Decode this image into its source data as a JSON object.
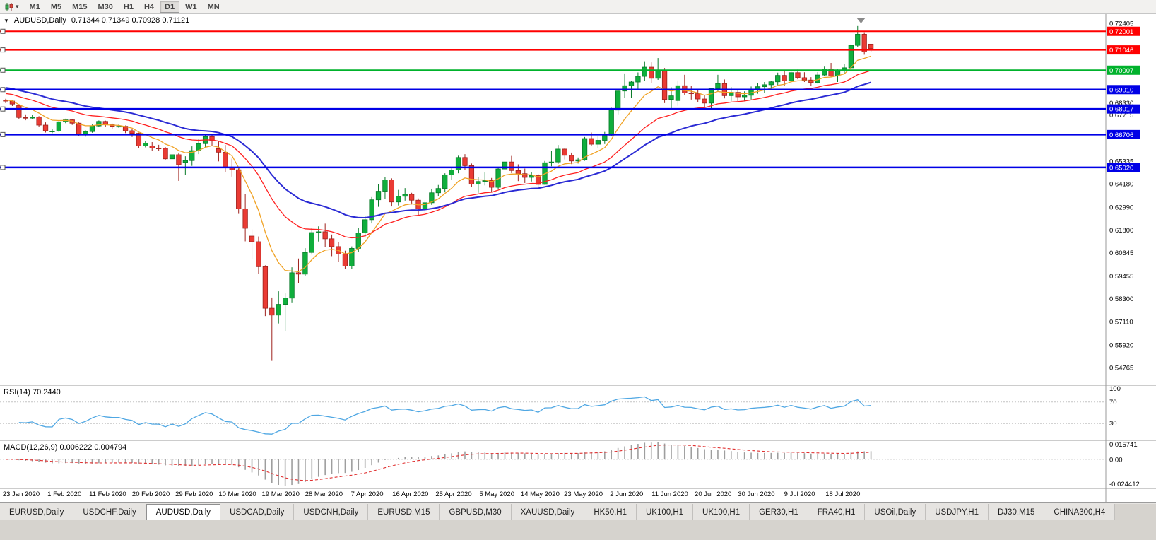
{
  "toolbar": {
    "caret_glyph": "▾",
    "timeframes": [
      {
        "label": "M1"
      },
      {
        "label": "M5"
      },
      {
        "label": "M15"
      },
      {
        "label": "M30"
      },
      {
        "label": "H1"
      },
      {
        "label": "H4"
      },
      {
        "label": "D1",
        "active": true
      },
      {
        "label": "W1"
      },
      {
        "label": "MN"
      }
    ]
  },
  "chart": {
    "title": "AUDUSD,Daily",
    "ohlc": "0.71344 0.71349 0.70928 0.71121",
    "collapse_glyph": "▼"
  },
  "indicators": {
    "rsi": {
      "label": "RSI(14) 70.2440",
      "period": 14,
      "levels": [
        70,
        30
      ],
      "axis_labels": [
        "100",
        "70",
        "30"
      ],
      "range": [
        0,
        100
      ],
      "line_color": "#4FA7E3"
    },
    "macd": {
      "label": "MACD(12,26,9) 0.006222 0.004794",
      "fast": 12,
      "slow": 26,
      "signal": 9,
      "axis_labels": [
        "0.015741",
        "0.00",
        "-0.024412"
      ],
      "range": [
        -0.024412,
        0.015741
      ],
      "bar_color": "#9E9E9E",
      "signal_color": "#E03030"
    }
  },
  "chart_data": {
    "type": "candlestick",
    "symbol": "AUDUSD",
    "period": "Daily",
    "ylim": [
      0.5389,
      0.7288
    ],
    "price_ticks": [
      "0.72405",
      "0.68330",
      "0.67715",
      "0.65335",
      "0.64180",
      "0.62990",
      "0.61800",
      "0.60645",
      "0.59455",
      "0.58300",
      "0.57110",
      "0.55920",
      "0.54765"
    ],
    "hlines": [
      {
        "price": 0.72001,
        "label": "0.72001",
        "color": "#FF0000",
        "width": 2
      },
      {
        "price": 0.71046,
        "label": "0.71046",
        "color": "#FF0000",
        "width": 2
      },
      {
        "price": 0.70007,
        "label": "0.70007",
        "color": "#00B22C",
        "width": 2
      },
      {
        "price": 0.6901,
        "label": "0.69010",
        "color": "#0000E6",
        "width": 2.5
      },
      {
        "price": 0.68017,
        "label": "0.68017",
        "color": "#0000E6",
        "width": 2.5
      },
      {
        "price": 0.66706,
        "label": "0.66706",
        "color": "#0000E6",
        "width": 2.5
      },
      {
        "price": 0.6502,
        "label": "0.65020",
        "color": "#0000E6",
        "width": 2.5
      }
    ],
    "date_labels": [
      "23 Jan 2020",
      "1 Feb 2020",
      "11 Feb 2020",
      "20 Feb 2020",
      "29 Feb 2020",
      "10 Mar 2020",
      "19 Mar 2020",
      "28 Mar 2020",
      "7 Apr 2020",
      "16 Apr 2020",
      "25 Apr 2020",
      "5 May 2020",
      "14 May 2020",
      "23 May 2020",
      "2 Jun 2020",
      "11 Jun 2020",
      "20 Jun 2020",
      "30 Jun 2020",
      "9 Jul 2020",
      "18 Jul 2020"
    ],
    "moving_averages": [
      {
        "name": "fast-ma",
        "color": "#F0A224",
        "period": 8,
        "seed": 0.685,
        "width": 1.3
      },
      {
        "name": "mid-ma",
        "color": "#FF2020",
        "period": 21,
        "seed": 0.6885,
        "width": 1.3
      },
      {
        "name": "slow-ma",
        "color": "#2A2AD4",
        "period": 34,
        "seed": 0.6915,
        "width": 2
      }
    ],
    "candles": [
      [
        0.6848,
        0.6854,
        0.6832,
        0.6842
      ],
      [
        0.6842,
        0.6849,
        0.6817,
        0.6827
      ],
      [
        0.682,
        0.6824,
        0.6748,
        0.6758
      ],
      [
        0.6758,
        0.6774,
        0.6744,
        0.6755
      ],
      [
        0.6755,
        0.6772,
        0.6749,
        0.676
      ],
      [
        0.676,
        0.6765,
        0.671,
        0.6719
      ],
      [
        0.6719,
        0.6733,
        0.6681,
        0.669
      ],
      [
        0.6686,
        0.67,
        0.6678,
        0.6688
      ],
      [
        0.6688,
        0.674,
        0.6683,
        0.6736
      ],
      [
        0.6736,
        0.6752,
        0.6729,
        0.6746
      ],
      [
        0.6746,
        0.675,
        0.672,
        0.6729
      ],
      [
        0.6729,
        0.6733,
        0.6662,
        0.667
      ],
      [
        0.6672,
        0.6692,
        0.666,
        0.6686
      ],
      [
        0.6686,
        0.6722,
        0.668,
        0.6715
      ],
      [
        0.6715,
        0.6743,
        0.6709,
        0.6738
      ],
      [
        0.6738,
        0.6742,
        0.6712,
        0.6721
      ],
      [
        0.6721,
        0.6727,
        0.67,
        0.6713
      ],
      [
        0.6713,
        0.6722,
        0.6705,
        0.6713
      ],
      [
        0.6713,
        0.6717,
        0.6678,
        0.669
      ],
      [
        0.669,
        0.67,
        0.6658,
        0.6677
      ],
      [
        0.6677,
        0.668,
        0.6601,
        0.6612
      ],
      [
        0.6612,
        0.6637,
        0.6605,
        0.6627
      ],
      [
        0.6612,
        0.6632,
        0.6585,
        0.6601
      ],
      [
        0.6601,
        0.6618,
        0.6586,
        0.66
      ],
      [
        0.66,
        0.6606,
        0.6542,
        0.6546
      ],
      [
        0.6546,
        0.6574,
        0.6521,
        0.6567
      ],
      [
        0.6567,
        0.6578,
        0.6433,
        0.6516
      ],
      [
        0.6528,
        0.6559,
        0.6462,
        0.6537
      ],
      [
        0.6537,
        0.661,
        0.651,
        0.6588
      ],
      [
        0.6588,
        0.6646,
        0.657,
        0.6624
      ],
      [
        0.6624,
        0.667,
        0.66,
        0.666
      ],
      [
        0.666,
        0.6672,
        0.6613,
        0.6641
      ],
      [
        0.6598,
        0.6635,
        0.6533,
        0.658
      ],
      [
        0.658,
        0.6617,
        0.6477,
        0.6502
      ],
      [
        0.6502,
        0.6547,
        0.6455,
        0.649
      ],
      [
        0.649,
        0.6499,
        0.6264,
        0.629
      ],
      [
        0.629,
        0.6365,
        0.6123,
        0.619
      ],
      [
        0.615,
        0.6185,
        0.603,
        0.6121
      ],
      [
        0.6121,
        0.6148,
        0.5958,
        0.5993
      ],
      [
        0.5993,
        0.6,
        0.574,
        0.578
      ],
      [
        0.578,
        0.5835,
        0.551,
        0.5745
      ],
      [
        0.5745,
        0.5867,
        0.5702,
        0.58
      ],
      [
        0.58,
        0.5856,
        0.5664,
        0.5832
      ],
      [
        0.5832,
        0.599,
        0.581,
        0.5962
      ],
      [
        0.5962,
        0.6035,
        0.591,
        0.5955
      ],
      [
        0.5955,
        0.6088,
        0.5945,
        0.6066
      ],
      [
        0.6066,
        0.6193,
        0.6055,
        0.6168
      ],
      [
        0.6168,
        0.62,
        0.6122,
        0.6172
      ],
      [
        0.6172,
        0.6214,
        0.6095,
        0.6136
      ],
      [
        0.6136,
        0.6158,
        0.6047,
        0.6096
      ],
      [
        0.6096,
        0.6119,
        0.6018,
        0.6058
      ],
      [
        0.6058,
        0.6075,
        0.5982,
        0.5996
      ],
      [
        0.5996,
        0.6097,
        0.598,
        0.6087
      ],
      [
        0.6087,
        0.619,
        0.607,
        0.6166
      ],
      [
        0.6166,
        0.6255,
        0.6142,
        0.6234
      ],
      [
        0.6234,
        0.635,
        0.6215,
        0.6336
      ],
      [
        0.6336,
        0.6418,
        0.63,
        0.638
      ],
      [
        0.638,
        0.6454,
        0.634,
        0.6438
      ],
      [
        0.6438,
        0.6446,
        0.6302,
        0.6325
      ],
      [
        0.6325,
        0.6387,
        0.6307,
        0.6354
      ],
      [
        0.6354,
        0.6396,
        0.6332,
        0.6364
      ],
      [
        0.6364,
        0.6372,
        0.6312,
        0.6334
      ],
      [
        0.6334,
        0.6343,
        0.6253,
        0.629
      ],
      [
        0.629,
        0.6334,
        0.6266,
        0.6321
      ],
      [
        0.6321,
        0.6393,
        0.631,
        0.6372
      ],
      [
        0.6372,
        0.6412,
        0.6355,
        0.6394
      ],
      [
        0.6394,
        0.6472,
        0.6374,
        0.6464
      ],
      [
        0.6464,
        0.6497,
        0.644,
        0.6489
      ],
      [
        0.6489,
        0.6562,
        0.6472,
        0.6553
      ],
      [
        0.6553,
        0.657,
        0.649,
        0.6511
      ],
      [
        0.6511,
        0.6522,
        0.6402,
        0.6416
      ],
      [
        0.6416,
        0.6452,
        0.6372,
        0.643
      ],
      [
        0.643,
        0.6476,
        0.641,
        0.6435
      ],
      [
        0.6435,
        0.6448,
        0.6374,
        0.64
      ],
      [
        0.64,
        0.6504,
        0.639,
        0.6494
      ],
      [
        0.6494,
        0.6562,
        0.648,
        0.653
      ],
      [
        0.653,
        0.6561,
        0.6473,
        0.6486
      ],
      [
        0.6486,
        0.6518,
        0.6432,
        0.647
      ],
      [
        0.647,
        0.6496,
        0.6422,
        0.6451
      ],
      [
        0.6451,
        0.6476,
        0.643,
        0.6461
      ],
      [
        0.6461,
        0.6469,
        0.6403,
        0.6415
      ],
      [
        0.6415,
        0.6535,
        0.6413,
        0.6526
      ],
      [
        0.6526,
        0.6585,
        0.6508,
        0.653
      ],
      [
        0.653,
        0.6617,
        0.652,
        0.6596
      ],
      [
        0.6596,
        0.6601,
        0.6543,
        0.6564
      ],
      [
        0.6564,
        0.6578,
        0.6519,
        0.6535
      ],
      [
        0.6535,
        0.6553,
        0.6522,
        0.6541
      ],
      [
        0.6541,
        0.6658,
        0.6536,
        0.665
      ],
      [
        0.665,
        0.6681,
        0.6612,
        0.6621
      ],
      [
        0.6621,
        0.6664,
        0.6602,
        0.6641
      ],
      [
        0.6641,
        0.6684,
        0.6622,
        0.6667
      ],
      [
        0.6667,
        0.6808,
        0.6662,
        0.6796
      ],
      [
        0.6796,
        0.69,
        0.6774,
        0.6894
      ],
      [
        0.6894,
        0.6984,
        0.6858,
        0.6921
      ],
      [
        0.6921,
        0.6945,
        0.6858,
        0.694
      ],
      [
        0.694,
        0.6989,
        0.6904,
        0.6969
      ],
      [
        0.6969,
        0.7043,
        0.6945,
        0.7016
      ],
      [
        0.7016,
        0.7041,
        0.6933,
        0.6959
      ],
      [
        0.6959,
        0.7063,
        0.6951,
        0.7
      ],
      [
        0.7,
        0.7012,
        0.6832,
        0.6851
      ],
      [
        0.6851,
        0.6913,
        0.68,
        0.6869
      ],
      [
        0.6845,
        0.6948,
        0.6818,
        0.6921
      ],
      [
        0.6921,
        0.6977,
        0.6873,
        0.6884
      ],
      [
        0.6884,
        0.6921,
        0.685,
        0.688
      ],
      [
        0.688,
        0.6898,
        0.6837,
        0.6853
      ],
      [
        0.6853,
        0.6871,
        0.6799,
        0.6832
      ],
      [
        0.6832,
        0.691,
        0.6801,
        0.6906
      ],
      [
        0.6906,
        0.6977,
        0.6891,
        0.6932
      ],
      [
        0.6932,
        0.6953,
        0.6856,
        0.687
      ],
      [
        0.687,
        0.6914,
        0.6843,
        0.6887
      ],
      [
        0.6887,
        0.6898,
        0.6841,
        0.6864
      ],
      [
        0.6864,
        0.6892,
        0.6843,
        0.6872
      ],
      [
        0.6872,
        0.6917,
        0.6851,
        0.6903
      ],
      [
        0.6903,
        0.6934,
        0.688,
        0.6916
      ],
      [
        0.6916,
        0.694,
        0.6884,
        0.6926
      ],
      [
        0.6926,
        0.6946,
        0.6902,
        0.6941
      ],
      [
        0.6941,
        0.6988,
        0.6921,
        0.6974
      ],
      [
        0.6974,
        0.6998,
        0.6922,
        0.6946
      ],
      [
        0.6946,
        0.7,
        0.693,
        0.6988
      ],
      [
        0.6988,
        0.7004,
        0.6954,
        0.6962
      ],
      [
        0.6962,
        0.699,
        0.694,
        0.695
      ],
      [
        0.695,
        0.6965,
        0.6921,
        0.6937
      ],
      [
        0.6937,
        0.6991,
        0.6932,
        0.6976
      ],
      [
        0.6976,
        0.7019,
        0.6972,
        0.7006
      ],
      [
        0.7006,
        0.7038,
        0.6964,
        0.6971
      ],
      [
        0.6971,
        0.7005,
        0.694,
        0.6996
      ],
      [
        0.6996,
        0.7033,
        0.6984,
        0.7013
      ],
      [
        0.7013,
        0.7133,
        0.7005,
        0.7128
      ],
      [
        0.7128,
        0.7227,
        0.712,
        0.7185
      ],
      [
        0.7185,
        0.7195,
        0.708,
        0.7095
      ],
      [
        0.71344,
        0.71349,
        0.70928,
        0.71121
      ]
    ],
    "candle_colors": {
      "up_fill": "#0FAE3C",
      "up_stroke": "#077A28",
      "down_fill": "#EA3B34",
      "down_stroke": "#9E221D"
    }
  },
  "tabs": [
    {
      "label": "EURUSD,Daily"
    },
    {
      "label": "USDCHF,Daily"
    },
    {
      "label": "AUDUSD,Daily",
      "active": true
    },
    {
      "label": "USDCAD,Daily"
    },
    {
      "label": "USDCNH,Daily"
    },
    {
      "label": "EURUSD,M15"
    },
    {
      "label": "GBPUSD,M30"
    },
    {
      "label": "XAUUSD,Daily"
    },
    {
      "label": "HK50,H1"
    },
    {
      "label": "UK100,H1"
    },
    {
      "label": "UK100,H1"
    },
    {
      "label": "GER30,H1"
    },
    {
      "label": "FRA40,H1"
    },
    {
      "label": "USOil,Daily"
    },
    {
      "label": "USDJPY,H1"
    },
    {
      "label": "DJ30,M15"
    },
    {
      "label": "CHINA300,H4"
    }
  ]
}
